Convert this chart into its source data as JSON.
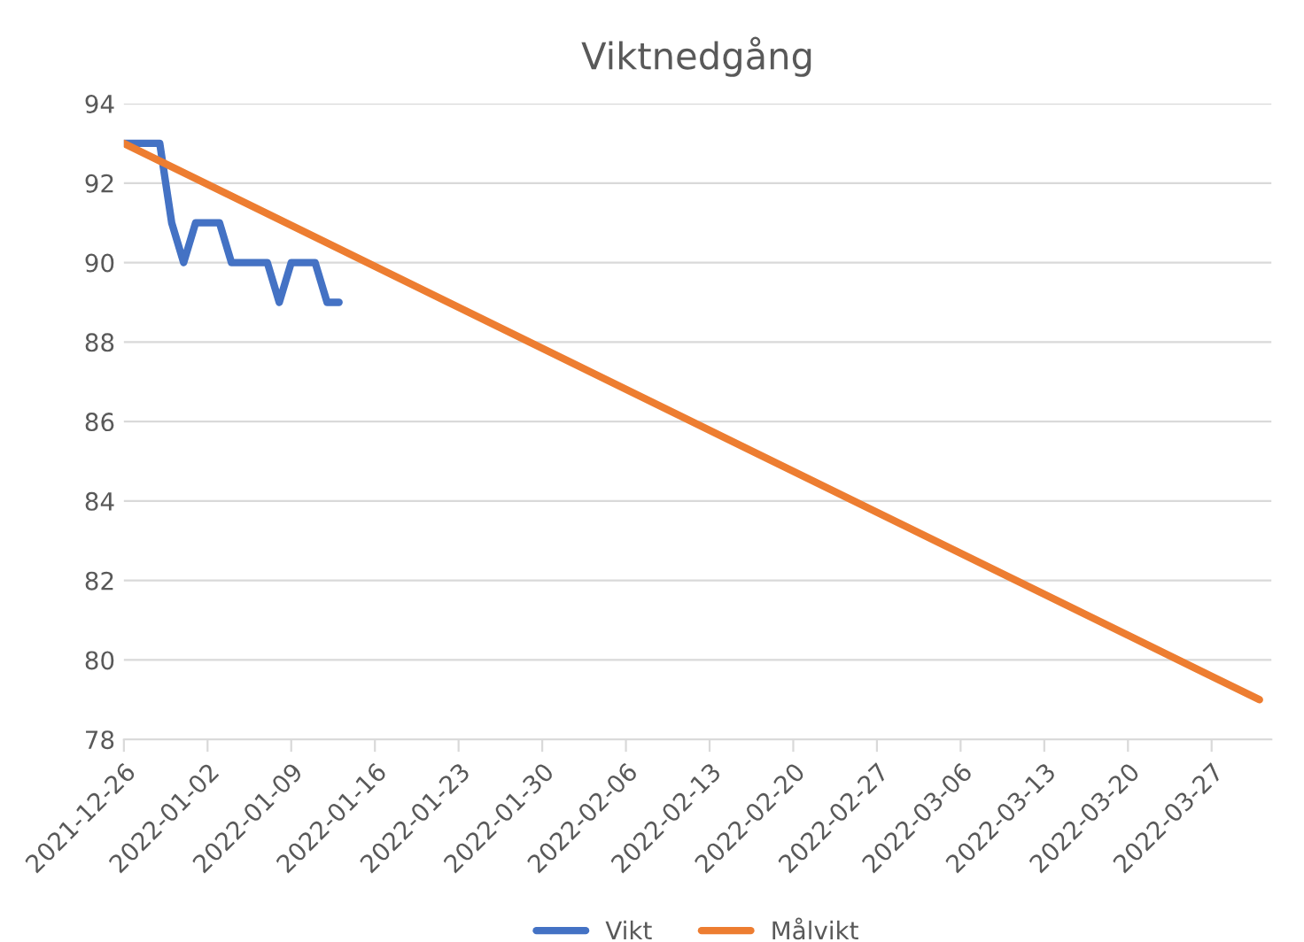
{
  "chart_data": {
    "type": "line",
    "title": "Viktnedgång",
    "series": [
      {
        "name": "Vikt",
        "color": "#4472c4",
        "x": [
          "2021-12-26",
          "2021-12-27",
          "2021-12-28",
          "2021-12-29",
          "2021-12-30",
          "2021-12-31",
          "2022-01-01",
          "2022-01-02",
          "2022-01-03",
          "2022-01-04",
          "2022-01-05",
          "2022-01-06",
          "2022-01-07",
          "2022-01-08",
          "2022-01-09",
          "2022-01-10",
          "2022-01-11",
          "2022-01-12",
          "2022-01-13"
        ],
        "values": [
          93,
          93,
          93,
          93,
          91,
          90,
          91,
          91,
          91,
          90,
          90,
          90,
          90,
          89,
          90,
          90,
          90,
          89,
          89
        ]
      },
      {
        "name": "Målvikt",
        "color": "#ed7d31",
        "x": [
          "2021-12-26",
          "2022-03-31"
        ],
        "values": [
          93,
          79
        ]
      }
    ],
    "xlim": [
      "2021-12-26",
      "2022-04-01"
    ],
    "xticks": [
      "2021-12-26",
      "2022-01-02",
      "2022-01-09",
      "2022-01-16",
      "2022-01-23",
      "2022-01-30",
      "2022-02-06",
      "2022-02-13",
      "2022-02-20",
      "2022-02-27",
      "2022-03-06",
      "2022-03-13",
      "2022-03-20",
      "2022-03-27"
    ],
    "ylim": [
      78,
      94
    ],
    "yticks": [
      78,
      80,
      82,
      84,
      86,
      88,
      90,
      92,
      94
    ],
    "grid": "y",
    "legend": "bottom",
    "marker": "none",
    "line_style": "solid"
  }
}
